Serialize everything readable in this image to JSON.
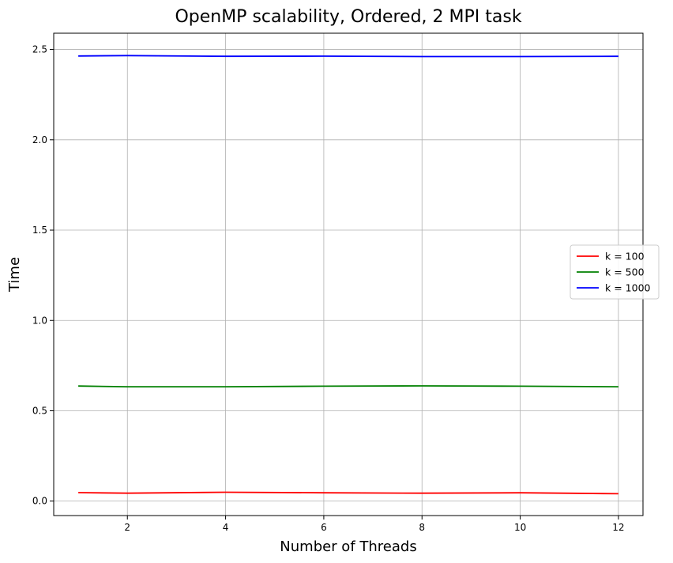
{
  "chart_data": {
    "type": "line",
    "title": "OpenMP scalability, Ordered, 2 MPI task",
    "xlabel": "Number of Threads",
    "ylabel": "Time",
    "x": [
      1,
      2,
      4,
      6,
      8,
      10,
      12
    ],
    "xlim": [
      0.5,
      12.5
    ],
    "ylim": [
      -0.08,
      2.59
    ],
    "xticks": [
      2,
      4,
      6,
      8,
      10,
      12
    ],
    "yticks": [
      0.0,
      0.5,
      1.0,
      1.5,
      2.0,
      2.5
    ],
    "ytick_labels": [
      "0.0",
      "0.5",
      "1.0",
      "1.5",
      "2.0",
      "2.5"
    ],
    "grid": true,
    "legend_position": "center-right",
    "series": [
      {
        "name": "k = 100",
        "color": "#ff0000",
        "values": [
          0.047,
          0.044,
          0.049,
          0.046,
          0.044,
          0.046,
          0.041
        ]
      },
      {
        "name": "k = 500",
        "color": "#008000",
        "values": [
          0.637,
          0.633,
          0.633,
          0.636,
          0.638,
          0.636,
          0.633
        ]
      },
      {
        "name": "k = 1000",
        "color": "#0000ff",
        "values": [
          2.464,
          2.466,
          2.462,
          2.463,
          2.461,
          2.461,
          2.462
        ]
      }
    ]
  }
}
